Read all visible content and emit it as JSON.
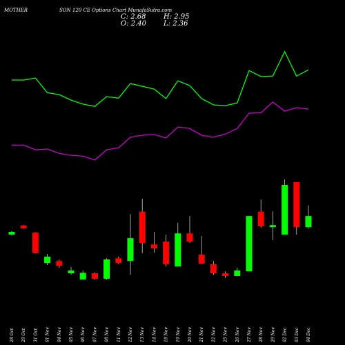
{
  "chart_data": {
    "type": "candlestick",
    "title": "MOTHER",
    "subtitle": "SON  120  CE Options  Chart MunafaSutra.com",
    "info_labels": [
      "C: 2.68",
      "O: 2.40",
      "H: 2.95",
      "L: 2.36"
    ],
    "categories": [
      "28 Oct",
      "29 Oct",
      "31 Oct",
      "01 Nov",
      "04 Nov",
      "05 Nov",
      "06 Nov",
      "07 Nov",
      "08 Nov",
      "11 Nov",
      "12 Nov",
      "13 Nov",
      "14 Nov",
      "18 Nov",
      "19 Nov",
      "20 Nov",
      "21 Nov",
      "22 Nov",
      "25 Nov",
      "26 Nov",
      "27 Nov",
      "28 Nov",
      "29 Nov",
      "02 Dec",
      "03 Dec",
      "04 Dec"
    ],
    "open": [
      2.21,
      2.44,
      2.26,
      1.49,
      1.54,
      1.23,
      1.07,
      1.23,
      1.09,
      1.61,
      1.54,
      2.79,
      1.96,
      2.03,
      1.4,
      2.24,
      1.7,
      1.46,
      1.23,
      1.16,
      1.28,
      2.79,
      2.4,
      2.21,
      3.54,
      2.4
    ],
    "high": [
      2.3,
      2.45,
      2.27,
      1.72,
      1.58,
      1.39,
      1.3,
      1.25,
      1.61,
      1.65,
      2.73,
      3.12,
      2.28,
      2.21,
      2.51,
      2.68,
      2.17,
      1.54,
      1.28,
      1.37,
      2.68,
      3.1,
      2.8,
      3.61,
      3.54,
      2.95
    ],
    "low": [
      2.19,
      2.36,
      1.73,
      1.44,
      1.37,
      1.19,
      1.07,
      1.07,
      1.07,
      1.46,
      1.19,
      1.74,
      1.75,
      1.4,
      1.4,
      2.0,
      1.46,
      1.19,
      1.11,
      1.16,
      1.28,
      2.38,
      2.07,
      2.21,
      2.21,
      2.36
    ],
    "close": [
      2.28,
      2.37,
      1.74,
      1.65,
      1.42,
      1.3,
      1.24,
      1.09,
      1.58,
      1.49,
      2.12,
      2.0,
      1.86,
      1.46,
      2.24,
      2.03,
      1.47,
      1.23,
      1.16,
      1.3,
      2.68,
      2.42,
      2.45,
      3.47,
      2.4,
      2.68
    ],
    "up_color": "#00ff00",
    "down_color": "#ff0000",
    "series": [
      {
        "color": "#00ff00",
        "values": [
          6.13,
          6.13,
          6.18,
          5.81,
          5.76,
          5.62,
          5.52,
          5.46,
          5.71,
          5.67,
          6.04,
          5.97,
          5.9,
          5.66,
          6.11,
          5.99,
          5.66,
          5.5,
          5.48,
          5.55,
          6.37,
          6.22,
          6.23,
          6.85,
          6.23,
          6.39
        ]
      },
      {
        "color": "#cc00cc",
        "values": [
          4.48,
          4.48,
          4.36,
          4.38,
          4.27,
          4.22,
          4.2,
          4.1,
          4.36,
          4.41,
          4.68,
          4.73,
          4.75,
          4.66,
          4.94,
          4.9,
          4.73,
          4.68,
          4.76,
          4.9,
          5.29,
          5.3,
          5.57,
          5.34,
          5.43,
          5.39
        ]
      }
    ],
    "ylim": [
      -0.59,
      8.16
    ]
  }
}
